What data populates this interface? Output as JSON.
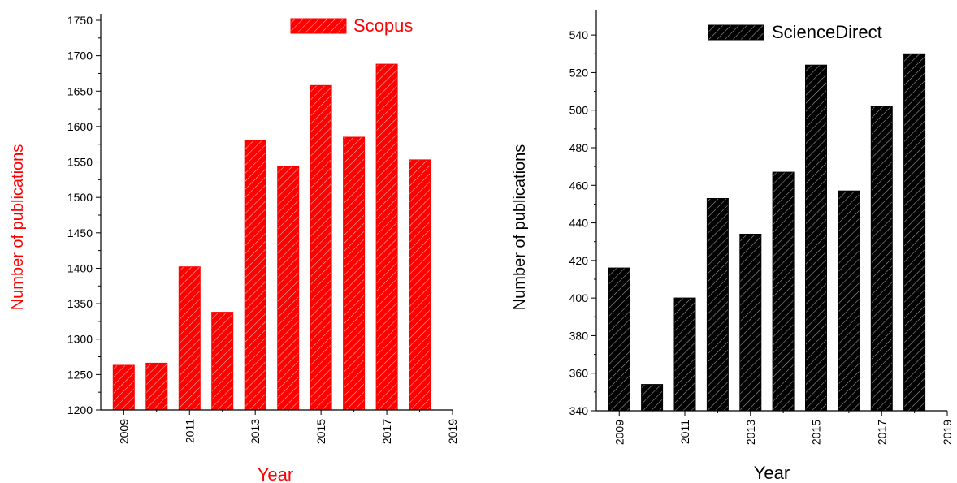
{
  "colors": {
    "scopus": "#ff0000",
    "sciencedirect": "#000000"
  },
  "chart_data": [
    {
      "type": "bar",
      "legend": "Scopus",
      "legend_position": "top-right",
      "xlabel": "Year",
      "ylabel": "Number of publications",
      "x": [
        2009,
        2010,
        2011,
        2012,
        2013,
        2014,
        2015,
        2016,
        2017,
        2018
      ],
      "values": [
        1263,
        1266,
        1402,
        1338,
        1580,
        1544,
        1658,
        1585,
        1688,
        1553
      ],
      "ylim": [
        1200,
        1750
      ],
      "yticks": [
        1200,
        1250,
        1300,
        1350,
        1400,
        1450,
        1500,
        1550,
        1600,
        1650,
        1700,
        1750
      ],
      "xlim": [
        2008.3,
        2019
      ],
      "xticks": [
        2009,
        2011,
        2013,
        2015,
        2017,
        2019
      ],
      "bar_color": "#ff0000",
      "title_color": "#ff0000",
      "hatch": "diagonal"
    },
    {
      "type": "bar",
      "legend": "ScienceDirect",
      "legend_position": "top-right",
      "xlabel": "Year",
      "ylabel": "Number of publications",
      "x": [
        2009,
        2010,
        2011,
        2012,
        2013,
        2014,
        2015,
        2016,
        2017,
        2018
      ],
      "values": [
        416,
        354,
        400,
        453,
        434,
        467,
        524,
        457,
        502,
        530
      ],
      "ylim": [
        340,
        550
      ],
      "yticks": [
        340,
        360,
        380,
        400,
        420,
        440,
        460,
        480,
        500,
        520,
        540
      ],
      "xlim": [
        2008.3,
        2019
      ],
      "xticks": [
        2009,
        2011,
        2013,
        2015,
        2017,
        2019
      ],
      "bar_color": "#000000",
      "title_color": "#000000",
      "hatch": "diagonal"
    }
  ]
}
